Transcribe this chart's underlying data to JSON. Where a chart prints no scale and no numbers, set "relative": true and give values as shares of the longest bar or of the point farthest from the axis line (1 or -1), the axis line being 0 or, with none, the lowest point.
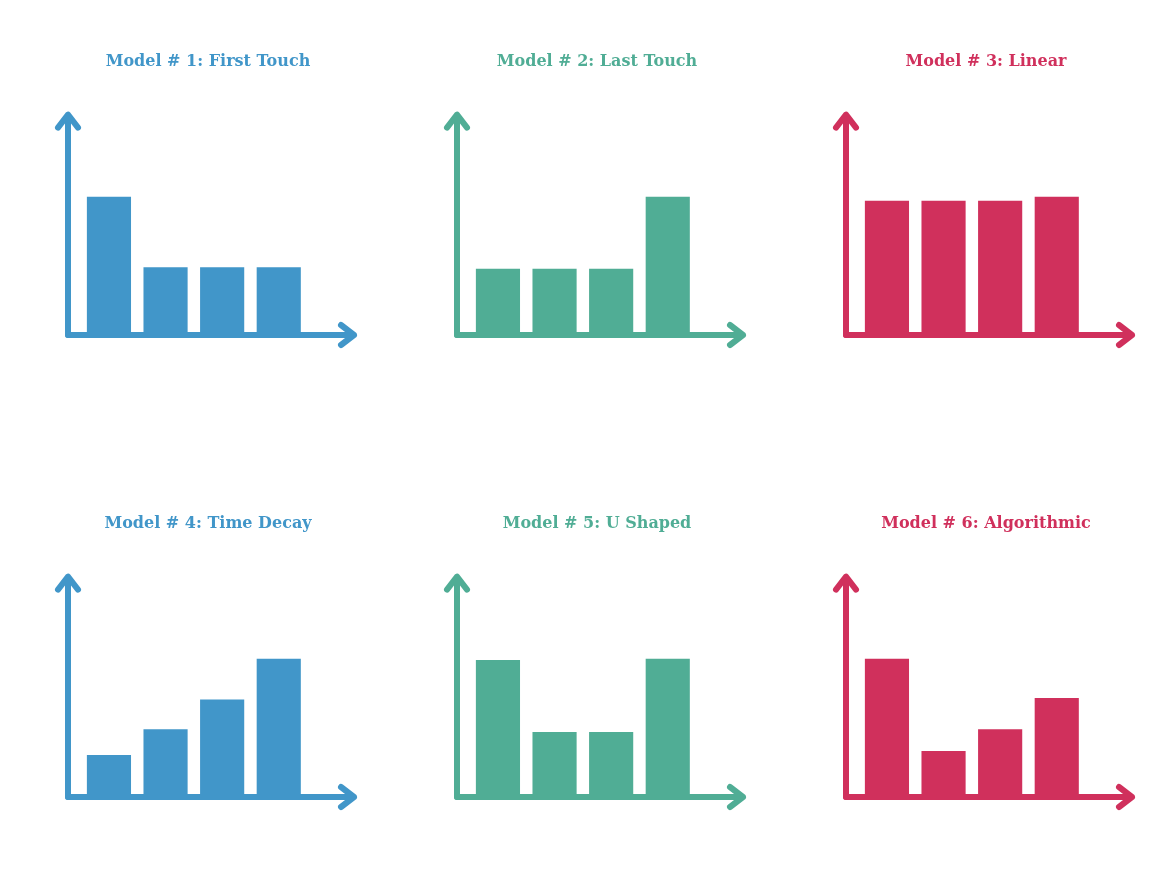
{
  "chart_data": [
    {
      "type": "bar",
      "title": "Model # 1: First Touch",
      "categories": [
        null,
        null,
        null,
        null
      ],
      "values": [
        1,
        0.48,
        0.48,
        0.48
      ],
      "color": "#4196c9",
      "relative": true
    },
    {
      "type": "bar",
      "title": "Model # 2: Last Touch",
      "categories": [
        null,
        null,
        null,
        null
      ],
      "values": [
        0.47,
        0.47,
        0.47,
        1
      ],
      "color": "#50ad95",
      "relative": true
    },
    {
      "type": "bar",
      "title": "Model # 3: Linear",
      "categories": [
        null,
        null,
        null,
        null
      ],
      "values": [
        0.97,
        0.97,
        0.97,
        1
      ],
      "color": "#d0305c",
      "relative": true
    },
    {
      "type": "bar",
      "title": "Model # 4: Time Decay",
      "categories": [
        null,
        null,
        null,
        null
      ],
      "values": [
        0.29,
        0.48,
        0.7,
        1
      ],
      "color": "#4196c9",
      "relative": true
    },
    {
      "type": "bar",
      "title": "Model # 5: U Shaped",
      "categories": [
        null,
        null,
        null,
        null
      ],
      "values": [
        0.99,
        0.46,
        0.46,
        1
      ],
      "color": "#50ad95",
      "relative": true
    },
    {
      "type": "bar",
      "title": "Model # 6: Algorithmic",
      "categories": [
        null,
        null,
        null,
        null
      ],
      "values": [
        1,
        0.32,
        0.48,
        0.71
      ],
      "color": "#d0305c",
      "relative": true
    }
  ]
}
